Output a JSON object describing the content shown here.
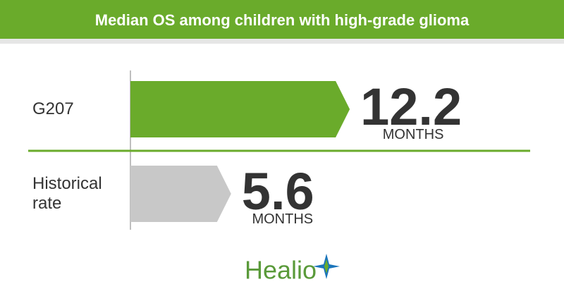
{
  "chart_data": {
    "type": "bar",
    "title": "Median OS among children with high-grade glioma",
    "categories": [
      "G207",
      "Historical rate"
    ],
    "values": [
      12.2,
      5.6
    ],
    "unit_label": "MONTHS",
    "colors": [
      "#6aab2b",
      "#c8c8c8"
    ],
    "logo": "Healio"
  }
}
